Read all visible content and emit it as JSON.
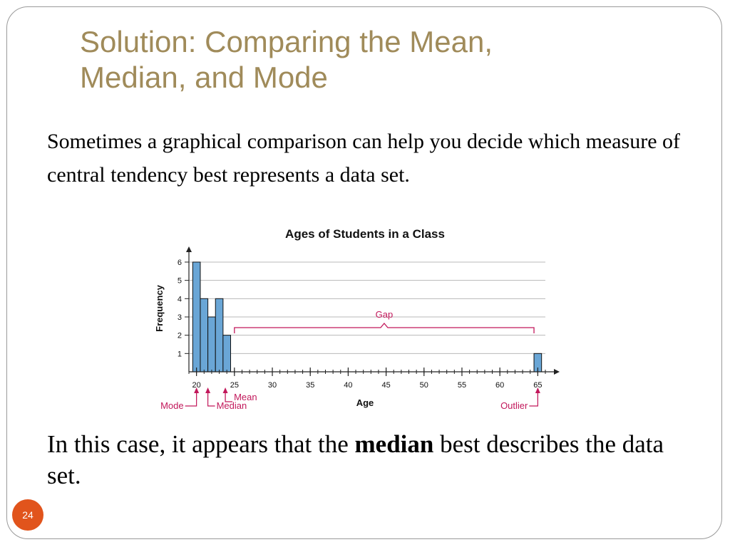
{
  "slide": {
    "title": "Solution: Comparing the Mean,\nMedian, and Mode",
    "intro": "Sometimes a graphical comparison can help you decide which measure of central tendency best represents a data set.",
    "conclusion_before": "In this case, it appears that the ",
    "conclusion_bold": "median",
    "conclusion_after": " best describes the data set.",
    "page_number": "24"
  },
  "colors": {
    "title": "#a08b5a",
    "bar_fill": "#6aa6d6",
    "annotation": "#c2185b",
    "page_badge": "#e1541c"
  },
  "chart_data": {
    "type": "bar",
    "title": "Ages of Students in a Class",
    "xlabel": "Age",
    "ylabel": "Frequency",
    "x": [
      20,
      21,
      22,
      23,
      24,
      65
    ],
    "values": [
      6,
      4,
      3,
      4,
      2,
      1
    ],
    "xlim": [
      19,
      66
    ],
    "ylim": [
      0,
      6.7
    ],
    "xticks": [
      20,
      25,
      30,
      35,
      40,
      45,
      50,
      55,
      60,
      65
    ],
    "yticks": [
      1,
      2,
      3,
      4,
      5,
      6
    ],
    "grid": true,
    "annotations": {
      "gap_label": "Gap",
      "gap_from": 25,
      "gap_to": 64.5,
      "mode_label": "Mode",
      "mode_x": 20,
      "median_label": "Median",
      "median_x": 21.5,
      "mean_label": "Mean",
      "mean_x": 23.8,
      "outlier_label": "Outlier",
      "outlier_x": 65
    }
  }
}
